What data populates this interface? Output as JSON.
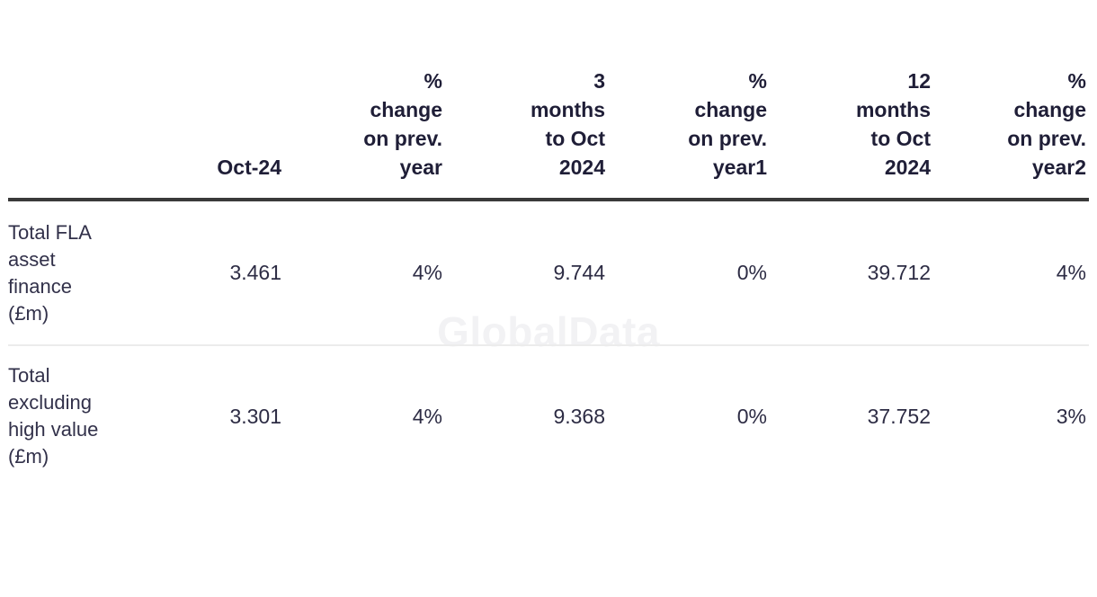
{
  "watermark": {
    "text": "GlobalData"
  },
  "colors": {
    "header_text": "#1f1e37",
    "body_text": "#2d2c44",
    "header_rule": "#3a3a3a",
    "row_divider": "#ececec",
    "watermark": "#f2f2f4",
    "background": "#ffffff"
  },
  "table": {
    "headers": [
      "",
      "Oct-24",
      "%\nchange\non prev.\nyear",
      "3\nmonths\nto Oct\n2024",
      "%\nchange\non prev.\nyear1",
      "12\nmonths\nto Oct\n2024",
      "%\nchange\non prev.\nyear2"
    ],
    "rows": [
      {
        "label": "Total FLA\nasset\nfinance\n(£m)",
        "values": [
          "3.461",
          "4%",
          "9.744",
          "0%",
          "39.712",
          "4%"
        ]
      },
      {
        "label": "Total\nexcluding\nhigh value\n(£m)",
        "values": [
          "3.301",
          "4%",
          "9.368",
          "0%",
          "37.752",
          "3%"
        ]
      }
    ]
  },
  "chart_data": {
    "type": "table",
    "title": "",
    "columns": [
      "",
      "Oct-24",
      "% change on prev. year",
      "3 months to Oct 2024",
      "% change on prev. year1",
      "12 months to Oct 2024",
      "% change on prev. year2"
    ],
    "rows": [
      [
        "Total FLA asset finance (£m)",
        "3.461",
        "4%",
        "9.744",
        "0%",
        "39.712",
        "4%"
      ],
      [
        "Total excluding high value (£m)",
        "3.301",
        "4%",
        "9.368",
        "0%",
        "37.752",
        "3%"
      ]
    ]
  }
}
